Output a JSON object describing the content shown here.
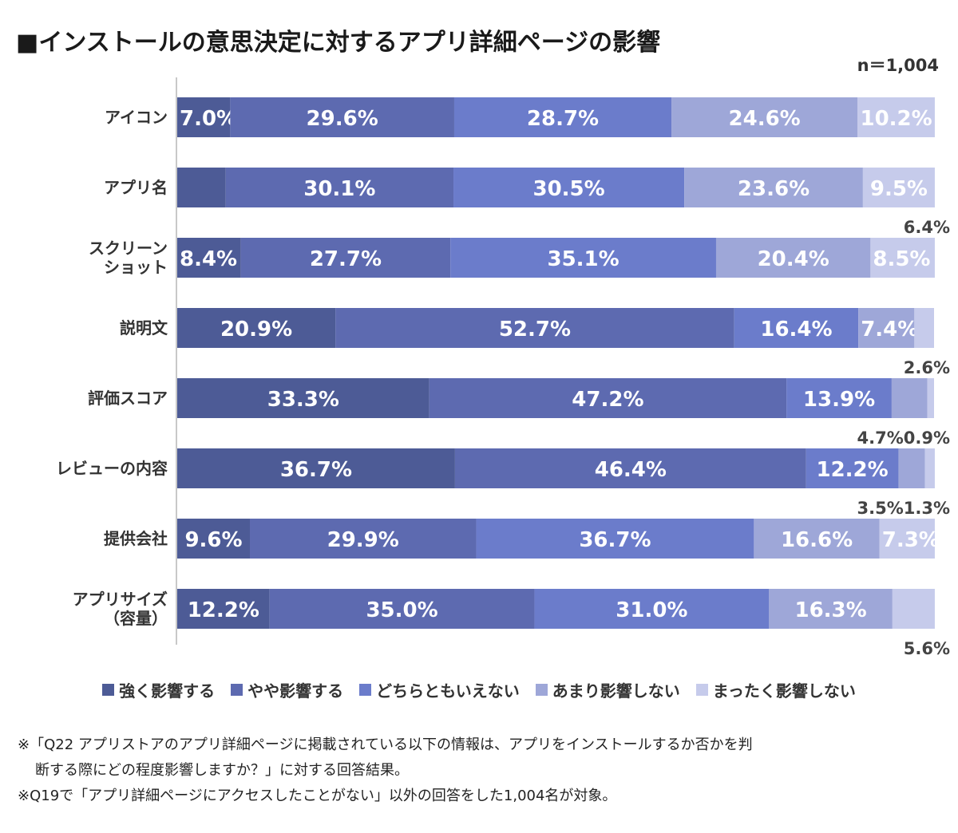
{
  "title": "■インストールの意思決定に対するアプリ詳細ページの影響",
  "sample_size": "n＝1,004",
  "chart_data": {
    "type": "bar",
    "orientation": "horizontal",
    "stacked": true,
    "percent": true,
    "categories": [
      "アイコン",
      "アプリ名",
      "スクリーンショット",
      "説明文",
      "評価スコア",
      "レビューの内容",
      "提供会社",
      "アプリサイズ（容量）"
    ],
    "category_lines": [
      [
        "アイコン"
      ],
      [
        "アプリ名"
      ],
      [
        "スクリーン",
        "ショット"
      ],
      [
        "説明文"
      ],
      [
        "評価スコア"
      ],
      [
        "レビューの内容"
      ],
      [
        "提供会社"
      ],
      [
        "アプリサイズ",
        "（容量）"
      ]
    ],
    "series": [
      {
        "name": "強く影響する",
        "color": "#4d5b96",
        "values": [
          7.0,
          6.4,
          8.4,
          20.9,
          33.3,
          36.7,
          9.6,
          12.2
        ]
      },
      {
        "name": "やや影響する",
        "color": "#5d6ab0",
        "values": [
          29.6,
          30.1,
          27.7,
          52.7,
          47.2,
          46.4,
          29.9,
          35.0
        ]
      },
      {
        "name": "どちらともいえない",
        "color": "#6b7ccb",
        "values": [
          28.7,
          30.5,
          35.1,
          16.4,
          13.9,
          12.2,
          36.7,
          31.0
        ]
      },
      {
        "name": "あまり影響しない",
        "color": "#9ea7d8",
        "values": [
          24.6,
          23.6,
          20.4,
          7.4,
          4.7,
          3.5,
          16.6,
          16.3
        ]
      },
      {
        "name": "まったく影響しない",
        "color": "#c6cbeb",
        "values": [
          10.2,
          9.5,
          8.5,
          2.6,
          0.9,
          1.3,
          7.3,
          5.6
        ]
      }
    ],
    "xlim": [
      0,
      100
    ]
  },
  "notes": [
    "※「Q22 アプリストアのアプリ詳細ページに掲載されている以下の情報は、アプリをインストールするか否かを判",
    "断する際にどの程度影響しますか？」に対する回答結果。",
    "※Q19で「アプリ詳細ページにアクセスしたことがない」以外の回答をした1,004名が対象。"
  ]
}
